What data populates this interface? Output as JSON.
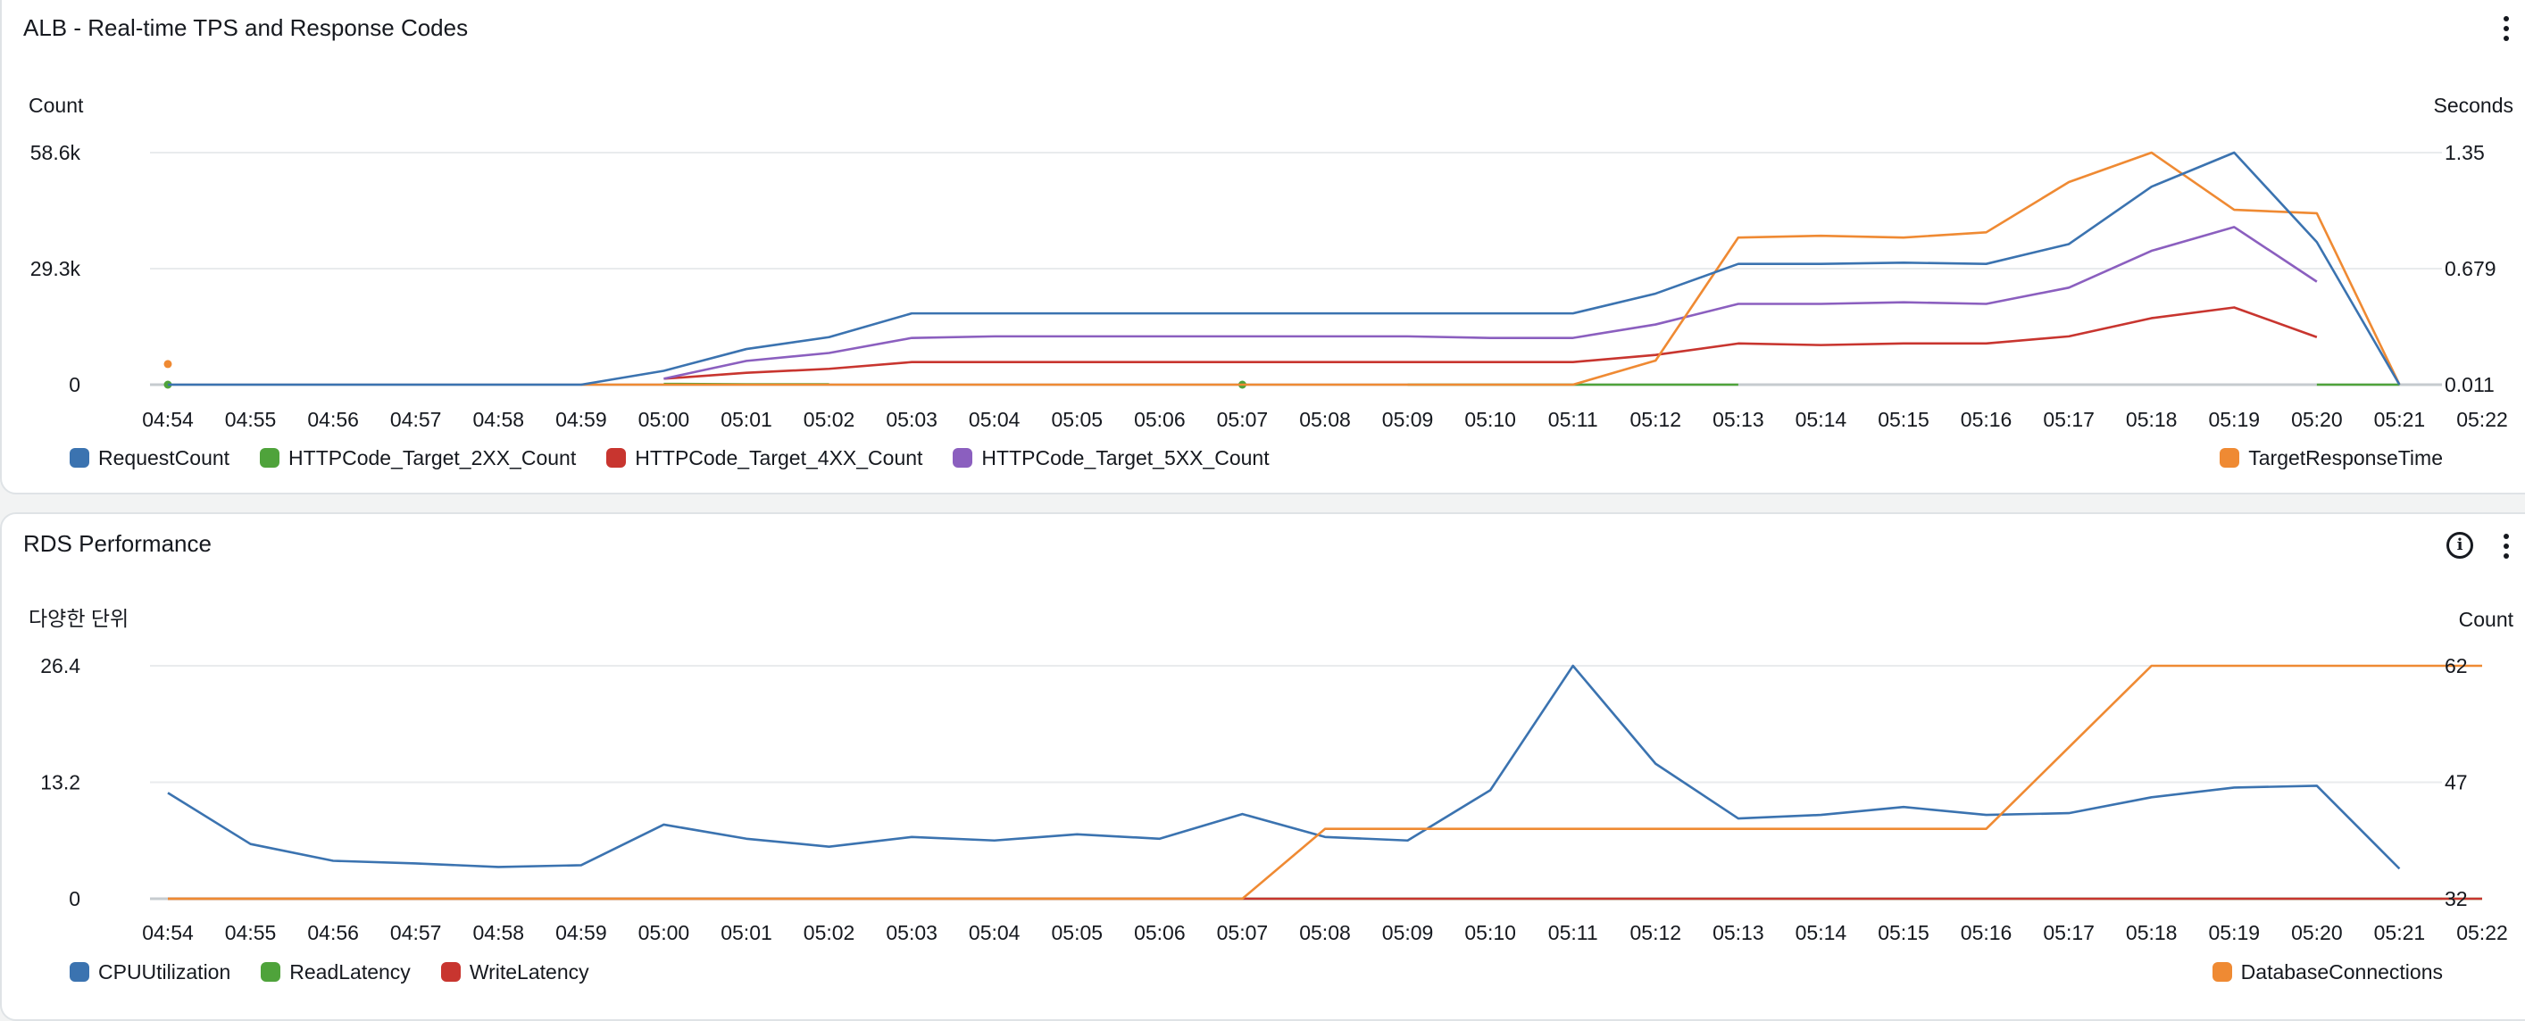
{
  "colors": {
    "blue": "#3b73b0",
    "green": "#4fa33b",
    "red": "#c8352f",
    "purple": "#8b5fbf",
    "orange": "#ef8a33"
  },
  "x_ticks": [
    "04:54",
    "04:55",
    "04:56",
    "04:57",
    "04:58",
    "04:59",
    "05:00",
    "05:01",
    "05:02",
    "05:03",
    "05:04",
    "05:05",
    "05:06",
    "05:07",
    "05:08",
    "05:09",
    "05:10",
    "05:11",
    "05:12",
    "05:13",
    "05:14",
    "05:15",
    "05:16",
    "05:17",
    "05:18",
    "05:19",
    "05:20",
    "05:21",
    "05:22"
  ],
  "panels": {
    "alb": {
      "title": "ALB - Real-time TPS and Response Codes",
      "left_axis_label": "Count",
      "right_axis_label": "Seconds"
    },
    "rds": {
      "title": "RDS Performance",
      "left_axis_label": "다양한 단위",
      "right_axis_label": "Count"
    }
  },
  "chart_data": [
    {
      "type": "line",
      "title": "ALB - Real-time TPS and Response Codes",
      "x": [
        "04:54",
        "04:55",
        "04:56",
        "04:57",
        "04:58",
        "04:59",
        "05:00",
        "05:01",
        "05:02",
        "05:03",
        "05:04",
        "05:05",
        "05:06",
        "05:07",
        "05:08",
        "05:09",
        "05:10",
        "05:11",
        "05:12",
        "05:13",
        "05:14",
        "05:15",
        "05:16",
        "05:17",
        "05:18",
        "05:19",
        "05:20",
        "05:21"
      ],
      "ylabel": "Count",
      "ylabel_right": "Seconds",
      "ylim": [
        0,
        58600
      ],
      "ylim_right": [
        0.011,
        1.35
      ],
      "yticks": [
        "0",
        "29.3k",
        "58.6k"
      ],
      "yticks_right": [
        "0.011",
        "0.679",
        "1.35"
      ],
      "series": [
        {
          "name": "RequestCount",
          "color": "blue",
          "axis": "left",
          "values": [
            0,
            0,
            0,
            0,
            0,
            0,
            3500,
            9000,
            12000,
            18000,
            18000,
            18000,
            18000,
            18000,
            18000,
            18000,
            18000,
            18000,
            23000,
            30500,
            30500,
            30800,
            30500,
            35500,
            50000,
            58600,
            36000,
            0
          ]
        },
        {
          "name": "HTTPCode_Target_2XX_Count",
          "color": "green",
          "axis": "left",
          "values": [
            0,
            null,
            null,
            null,
            null,
            null,
            200,
            100,
            100,
            null,
            null,
            null,
            null,
            0,
            null,
            0,
            0,
            0,
            0,
            0,
            null,
            null,
            null,
            null,
            null,
            null,
            0,
            0
          ]
        },
        {
          "name": "HTTPCode_Target_4XX_Count",
          "color": "red",
          "axis": "left",
          "values": [
            null,
            null,
            null,
            null,
            null,
            null,
            1500,
            3000,
            4000,
            5700,
            5700,
            5700,
            5700,
            5700,
            5700,
            5700,
            5700,
            5700,
            7500,
            10400,
            10000,
            10400,
            10400,
            12200,
            16800,
            19500,
            12000,
            null
          ]
        },
        {
          "name": "HTTPCode_Target_5XX_Count",
          "color": "purple",
          "axis": "left",
          "values": [
            null,
            null,
            null,
            null,
            null,
            null,
            1500,
            6000,
            8000,
            11800,
            12200,
            12200,
            12200,
            12200,
            12200,
            12200,
            11800,
            11800,
            15200,
            20400,
            20400,
            20800,
            20400,
            24500,
            33800,
            39800,
            26000,
            null
          ]
        },
        {
          "name": "TargetResponseTime",
          "color": "orange",
          "axis": "right",
          "values": [
            0.13,
            null,
            null,
            null,
            null,
            0.011,
            0.011,
            0.011,
            0.011,
            0.011,
            0.011,
            0.011,
            0.011,
            0.011,
            0.011,
            0.011,
            0.011,
            0.011,
            0.15,
            0.86,
            0.87,
            0.86,
            0.89,
            1.18,
            1.35,
            1.02,
            1.0,
            0.011
          ]
        }
      ],
      "legend": [
        "RequestCount",
        "HTTPCode_Target_2XX_Count",
        "HTTPCode_Target_4XX_Count",
        "HTTPCode_Target_5XX_Count",
        "TargetResponseTime"
      ]
    },
    {
      "type": "line",
      "title": "RDS Performance",
      "x": [
        "04:54",
        "04:55",
        "04:56",
        "04:57",
        "04:58",
        "04:59",
        "05:00",
        "05:01",
        "05:02",
        "05:03",
        "05:04",
        "05:05",
        "05:06",
        "05:07",
        "05:08",
        "05:09",
        "05:10",
        "05:11",
        "05:12",
        "05:13",
        "05:14",
        "05:15",
        "05:16",
        "05:17",
        "05:18",
        "05:19",
        "05:20",
        "05:21",
        "05:22"
      ],
      "ylabel": "다양한 단위",
      "ylabel_right": "Count",
      "ylim": [
        0,
        26.4
      ],
      "ylim_right": [
        32,
        62
      ],
      "yticks": [
        "0",
        "13.2",
        "26.4"
      ],
      "yticks_right": [
        "32",
        "47",
        "62"
      ],
      "series": [
        {
          "name": "CPUUtilization",
          "color": "blue",
          "axis": "left",
          "values": [
            12,
            6.2,
            4.3,
            4,
            3.6,
            3.8,
            8.4,
            6.8,
            5.9,
            7,
            6.6,
            7.3,
            6.8,
            9.6,
            7,
            6.6,
            12.3,
            26.4,
            15.3,
            9.1,
            9.5,
            10.4,
            9.5,
            9.7,
            11.5,
            12.6,
            12.8,
            3.4,
            null
          ]
        },
        {
          "name": "ReadLatency",
          "color": "green",
          "axis": "left",
          "values": [
            0,
            0,
            0,
            0,
            0,
            0,
            0,
            0,
            0,
            0,
            0,
            0,
            0,
            0,
            0,
            0,
            0,
            0,
            0,
            0,
            0,
            0,
            0,
            0,
            0,
            0,
            0,
            0,
            0
          ]
        },
        {
          "name": "WriteLatency",
          "color": "red",
          "axis": "left",
          "values": [
            0,
            0,
            0,
            0,
            0,
            0,
            0,
            0,
            0,
            0,
            0,
            0,
            0,
            0,
            0,
            0,
            0,
            0,
            0,
            0,
            0,
            0,
            0,
            0,
            0,
            0,
            0,
            0,
            0
          ]
        },
        {
          "name": "DatabaseConnections",
          "color": "orange",
          "axis": "right",
          "values": [
            32,
            32,
            32,
            32,
            32,
            32,
            32,
            32,
            32,
            32,
            32,
            32,
            32,
            32,
            41,
            41,
            41,
            41,
            41,
            41,
            41,
            41,
            41,
            51.5,
            62,
            62,
            62,
            62,
            62
          ]
        }
      ],
      "legend": [
        "CPUUtilization",
        "ReadLatency",
        "WriteLatency",
        "DatabaseConnections"
      ]
    }
  ]
}
